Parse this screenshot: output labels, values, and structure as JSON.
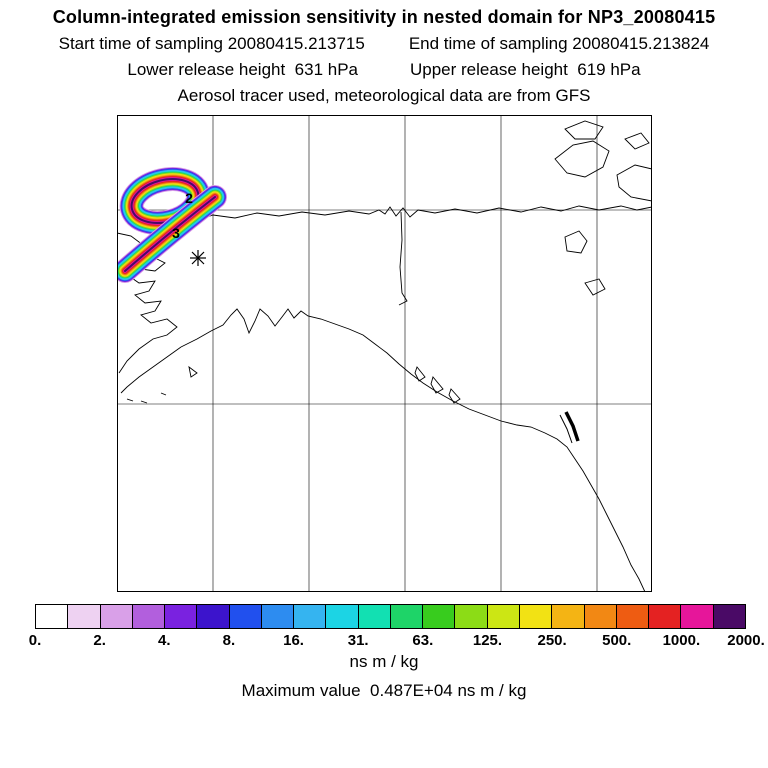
{
  "header": {
    "title": "Column-integrated emission sensitivity in nested domain for NP3_20080415",
    "start_time": "Start time of sampling 20080415.213715",
    "end_time": "End time of sampling 20080415.213824",
    "lower_release": "Lower release height  631 hPa",
    "upper_release": "Upper release height  619 hPa",
    "tracer_line": "Aerosol tracer used, meteorological data are from GFS"
  },
  "map": {
    "trajectory_labels": [
      "2",
      "3"
    ]
  },
  "plume": {
    "band_colors": [
      "#d9a0e8",
      "#7a22e0",
      "#2150ee",
      "#35b4f0",
      "#1cd4e4",
      "#1ed468",
      "#8cdc16",
      "#f2e214",
      "#f4b414",
      "#ee5c12",
      "#e42222",
      "#e6169a",
      "#4a0a66"
    ]
  },
  "colorbar": {
    "ticks": [
      "0.",
      "2.",
      "4.",
      "8.",
      "16.",
      "31.",
      "63.",
      "125.",
      "250.",
      "500.",
      "1000.",
      "2000."
    ],
    "colors": [
      "#ffffff",
      "#eed2f2",
      "#d9a0e8",
      "#b25fdd",
      "#7a22e0",
      "#3c14cc",
      "#2150ee",
      "#2d8cf0",
      "#35b4f0",
      "#1cd4e4",
      "#12e0b2",
      "#1ed468",
      "#38cc1e",
      "#8cdc16",
      "#cce614",
      "#f2e214",
      "#f4b414",
      "#f28814",
      "#ee5c12",
      "#e42222",
      "#e6169a",
      "#4a0a66"
    ],
    "units": "ns m / kg"
  },
  "footer": {
    "max_value_line": "Maximum value  0.487E+04 ns m / kg"
  },
  "chart_data": {
    "type": "heatmap",
    "title": "Column-integrated emission sensitivity in nested domain for NP3_20080415",
    "subtitle_lines": [
      "Start time of sampling 20080415.213715    End time of sampling 20080415.213824",
      "Lower release height  631 hPa    Upper release height  619 hPa",
      "Aerosol tracer used, meteorological data are from GFS"
    ],
    "colorbar_levels": [
      0,
      2,
      4,
      8,
      16,
      31,
      63,
      125,
      250,
      500,
      1000,
      2000
    ],
    "colorbar_units": "ns m / kg",
    "max_value": "0.487E+04",
    "sampling": {
      "start": "20080415.213715",
      "end": "20080415.213824"
    },
    "release_heights_hPa": {
      "lower": 631,
      "upper": 619
    },
    "tracer": "Aerosol",
    "meteorology": "GFS",
    "map_region": "Alaska and northwestern North America coastlines with lat/lon gridlines (no axis labels)",
    "plume_description": "Looped emission-sensitivity plume over northwest Alaska / Chukchi coast with dark high-value core streak, release marker cross, and trajectory time labels 2 and 3",
    "trajectory_time_labels": [
      "2",
      "3"
    ],
    "legend_position": "horizontal colorbar below map"
  }
}
